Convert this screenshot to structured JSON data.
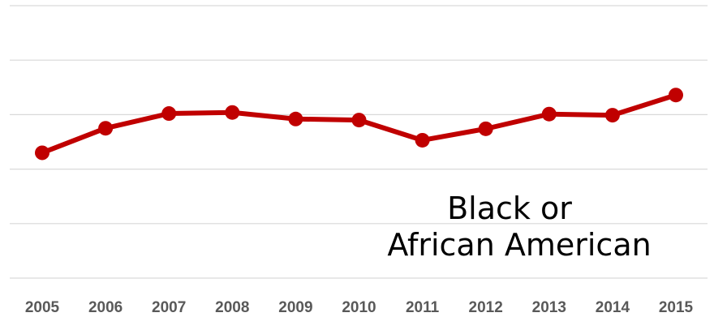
{
  "chart_data": {
    "type": "line",
    "title": "",
    "xlabel": "",
    "ylabel": "",
    "categories": [
      "2005",
      "2006",
      "2007",
      "2008",
      "2009",
      "2010",
      "2011",
      "2012",
      "2013",
      "2014",
      "2015"
    ],
    "series": [
      {
        "name": "Black or African American",
        "values": [
          2.3,
          2.75,
          3.02,
          3.04,
          2.92,
          2.9,
          2.53,
          2.74,
          3.01,
          2.99,
          3.36
        ]
      }
    ],
    "ylim": [
      0,
      5
    ],
    "gridlines": [
      0,
      1,
      2,
      3,
      4,
      5
    ],
    "grid": true,
    "y_tick_labels_shown": false,
    "legend": "none",
    "annotations": [
      {
        "lines": [
          "Black or",
          "African American"
        ]
      }
    ],
    "colors": {
      "series": "#c00000",
      "grid": "#d9d9d9",
      "ticks": "#595959"
    }
  }
}
